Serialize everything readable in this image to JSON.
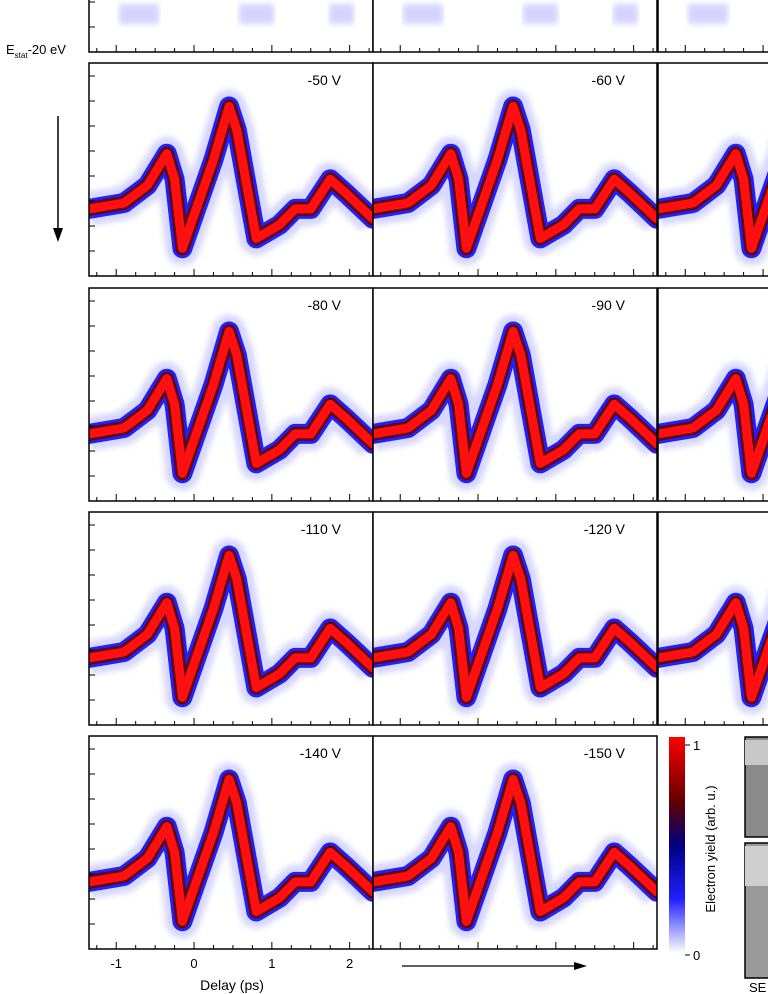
{
  "chart_data": {
    "type": "heatmap",
    "energy_label": "E",
    "energy_label_sub": "stat",
    "energy_label_rest": "-20 eV",
    "xlabel": "Delay (ps)",
    "xticks": [
      "-1",
      "0",
      "1",
      "2"
    ],
    "xlim": [
      -1.35,
      2.3
    ],
    "panel_labels": [
      "-50 V",
      "-60 V",
      "-80 V",
      "-90 V",
      "-110 V",
      "-120 V",
      "-140 V",
      "-150 V"
    ],
    "colorbar": {
      "label": "Electron yield (arb. u.)",
      "max_label": "1",
      "min_label": "0",
      "colors": [
        "#ffffff",
        "#2020ff",
        "#000080",
        "#600000",
        "#ff0000"
      ]
    },
    "partial_label": "SE",
    "trace_points": [
      {
        "x": -1.35,
        "y": 0.3
      },
      {
        "x": -0.9,
        "y": 0.33
      },
      {
        "x": -0.6,
        "y": 0.42
      },
      {
        "x": -0.35,
        "y": 0.58
      },
      {
        "x": -0.25,
        "y": 0.45
      },
      {
        "x": -0.15,
        "y": 0.1
      },
      {
        "x": 0.25,
        "y": 0.55
      },
      {
        "x": 0.45,
        "y": 0.82
      },
      {
        "x": 0.55,
        "y": 0.7
      },
      {
        "x": 0.8,
        "y": 0.15
      },
      {
        "x": 1.1,
        "y": 0.22
      },
      {
        "x": 1.3,
        "y": 0.3
      },
      {
        "x": 1.5,
        "y": 0.3
      },
      {
        "x": 1.75,
        "y": 0.45
      },
      {
        "x": 1.95,
        "y": 0.38
      },
      {
        "x": 2.3,
        "y": 0.25
      }
    ]
  }
}
